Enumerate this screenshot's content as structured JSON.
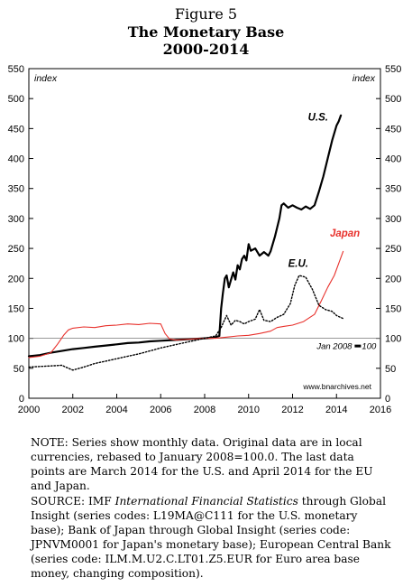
{
  "figure": {
    "label": "Figure 5",
    "title": "The Monetary Base",
    "subtitle": "2000-2014"
  },
  "chart_data": {
    "type": "line",
    "xlim": [
      2000,
      2016
    ],
    "ylim": [
      0,
      550
    ],
    "x_ticks": [
      "2000",
      "2002",
      "2004",
      "2006",
      "2008",
      "2010",
      "2012",
      "2014",
      "2016"
    ],
    "y_ticks": [
      "0",
      "50",
      "100",
      "150",
      "200",
      "250",
      "300",
      "350",
      "400",
      "450",
      "500",
      "550"
    ],
    "ylabel_left": "index",
    "ylabel_right": "index",
    "reference_line": {
      "y": 100,
      "label": "Jan 2008",
      "label_suffix": "100"
    },
    "watermark": "www.bnarchives.net",
    "grid": false,
    "series": [
      {
        "name": "U.S.",
        "color": "#000000",
        "style": "solid-thick",
        "points": [
          [
            2000.0,
            70
          ],
          [
            2000.5,
            72
          ],
          [
            2001.0,
            76
          ],
          [
            2001.5,
            79
          ],
          [
            2002.0,
            82
          ],
          [
            2002.5,
            84
          ],
          [
            2003.0,
            86
          ],
          [
            2003.5,
            88
          ],
          [
            2004.0,
            90
          ],
          [
            2004.5,
            92
          ],
          [
            2005.0,
            93
          ],
          [
            2005.5,
            95
          ],
          [
            2006.0,
            96
          ],
          [
            2006.5,
            97
          ],
          [
            2007.0,
            98
          ],
          [
            2007.5,
            99
          ],
          [
            2008.0,
            100
          ],
          [
            2008.4,
            101
          ],
          [
            2008.67,
            104
          ],
          [
            2008.75,
            150
          ],
          [
            2008.83,
            175
          ],
          [
            2008.92,
            200
          ],
          [
            2009.0,
            205
          ],
          [
            2009.1,
            185
          ],
          [
            2009.2,
            198
          ],
          [
            2009.3,
            210
          ],
          [
            2009.4,
            198
          ],
          [
            2009.5,
            222
          ],
          [
            2009.6,
            215
          ],
          [
            2009.7,
            232
          ],
          [
            2009.8,
            238
          ],
          [
            2009.9,
            230
          ],
          [
            2010.0,
            257
          ],
          [
            2010.1,
            246
          ],
          [
            2010.3,
            250
          ],
          [
            2010.5,
            238
          ],
          [
            2010.7,
            244
          ],
          [
            2010.9,
            238
          ],
          [
            2011.0,
            245
          ],
          [
            2011.2,
            270
          ],
          [
            2011.4,
            300
          ],
          [
            2011.5,
            322
          ],
          [
            2011.6,
            325
          ],
          [
            2011.8,
            318
          ],
          [
            2012.0,
            322
          ],
          [
            2012.2,
            318
          ],
          [
            2012.4,
            315
          ],
          [
            2012.6,
            320
          ],
          [
            2012.8,
            316
          ],
          [
            2013.0,
            322
          ],
          [
            2013.2,
            345
          ],
          [
            2013.4,
            370
          ],
          [
            2013.6,
            400
          ],
          [
            2013.8,
            430
          ],
          [
            2014.0,
            455
          ],
          [
            2014.1,
            462
          ],
          [
            2014.2,
            472
          ]
        ]
      },
      {
        "name": "Japan",
        "color": "#e8312c",
        "style": "solid-thin",
        "points": [
          [
            2000.0,
            68
          ],
          [
            2000.5,
            70
          ],
          [
            2001.0,
            76
          ],
          [
            2001.3,
            90
          ],
          [
            2001.6,
            106
          ],
          [
            2001.8,
            114
          ],
          [
            2002.0,
            117
          ],
          [
            2002.5,
            119
          ],
          [
            2003.0,
            118
          ],
          [
            2003.5,
            121
          ],
          [
            2004.0,
            122
          ],
          [
            2004.5,
            124
          ],
          [
            2005.0,
            123
          ],
          [
            2005.5,
            125
          ],
          [
            2006.0,
            124
          ],
          [
            2006.2,
            108
          ],
          [
            2006.4,
            99
          ],
          [
            2006.7,
            97
          ],
          [
            2007.0,
            98
          ],
          [
            2007.5,
            99
          ],
          [
            2008.0,
            100
          ],
          [
            2008.5,
            100
          ],
          [
            2009.0,
            102
          ],
          [
            2009.5,
            104
          ],
          [
            2010.0,
            105
          ],
          [
            2010.5,
            108
          ],
          [
            2011.0,
            112
          ],
          [
            2011.3,
            118
          ],
          [
            2011.6,
            120
          ],
          [
            2012.0,
            122
          ],
          [
            2012.5,
            128
          ],
          [
            2013.0,
            140
          ],
          [
            2013.3,
            162
          ],
          [
            2013.6,
            185
          ],
          [
            2013.9,
            205
          ],
          [
            2014.1,
            225
          ],
          [
            2014.3,
            245
          ]
        ]
      },
      {
        "name": "E.U.",
        "color": "#000000",
        "style": "dotted",
        "points": [
          [
            2000.0,
            52
          ],
          [
            2000.5,
            53
          ],
          [
            2001.0,
            54
          ],
          [
            2001.5,
            55
          ],
          [
            2001.8,
            50
          ],
          [
            2002.0,
            47
          ],
          [
            2002.5,
            52
          ],
          [
            2003.0,
            58
          ],
          [
            2003.5,
            62
          ],
          [
            2004.0,
            66
          ],
          [
            2004.5,
            70
          ],
          [
            2005.0,
            74
          ],
          [
            2005.5,
            79
          ],
          [
            2006.0,
            84
          ],
          [
            2006.5,
            88
          ],
          [
            2007.0,
            92
          ],
          [
            2007.5,
            96
          ],
          [
            2008.0,
            100
          ],
          [
            2008.5,
            104
          ],
          [
            2008.75,
            118
          ],
          [
            2008.9,
            130
          ],
          [
            2009.0,
            138
          ],
          [
            2009.2,
            122
          ],
          [
            2009.4,
            130
          ],
          [
            2009.6,
            128
          ],
          [
            2009.8,
            124
          ],
          [
            2010.0,
            128
          ],
          [
            2010.3,
            132
          ],
          [
            2010.5,
            148
          ],
          [
            2010.7,
            130
          ],
          [
            2011.0,
            128
          ],
          [
            2011.3,
            135
          ],
          [
            2011.6,
            140
          ],
          [
            2011.9,
            158
          ],
          [
            2012.1,
            188
          ],
          [
            2012.3,
            205
          ],
          [
            2012.6,
            202
          ],
          [
            2012.9,
            182
          ],
          [
            2013.2,
            155
          ],
          [
            2013.5,
            148
          ],
          [
            2013.8,
            145
          ],
          [
            2014.0,
            138
          ],
          [
            2014.3,
            133
          ]
        ]
      }
    ],
    "series_labels": [
      {
        "text": "U.S.",
        "x": 2012.7,
        "y": 463,
        "color": "#000000"
      },
      {
        "text": "Japan",
        "x": 2013.7,
        "y": 270,
        "color": "#e8312c"
      },
      {
        "text": "E.U.",
        "x": 2011.8,
        "y": 219,
        "color": "#000000"
      }
    ]
  },
  "note": "NOTE: Series show monthly data. Original data are in local currencies, rebased to January 2008=100.0. The last data points are March 2014 for the U.S. and April 2014 for the EU and Japan.",
  "source": {
    "prefix": "SOURCE: IMF ",
    "italic": "International Financial Statistics",
    "rest": " through Global Insight (series codes: L19MA@C111 for the U.S. monetary base); Bank of Japan through Global Insight (series code: JPNVM0001 for Japan's monetary base); European Central Bank (series code: ILM.M.U2.C.LT01.Z5.EUR for Euro area base money, changing composition)."
  }
}
